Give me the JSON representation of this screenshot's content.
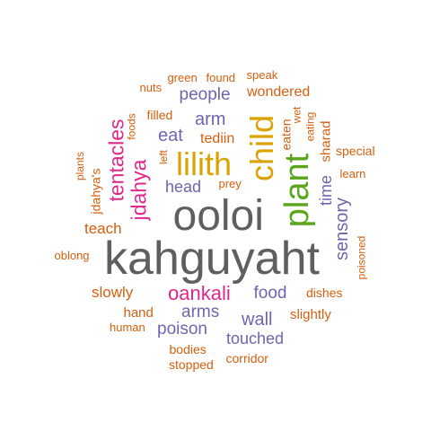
{
  "colors": {
    "gray": "#5f5f5f",
    "gold": "#d9a400",
    "green": "#5aa51c",
    "purple": "#7064b0",
    "pink": "#e0278a",
    "orange": "#d65f0e"
  },
  "words": [
    {
      "text": "kahguyaht",
      "color": "gray"
    },
    {
      "text": "ooloi",
      "color": "gray"
    },
    {
      "text": "plant",
      "color": "green"
    },
    {
      "text": "child",
      "color": "gold"
    },
    {
      "text": "lilith",
      "color": "gold"
    },
    {
      "text": "oankali",
      "color": "pink"
    },
    {
      "text": "tentacles",
      "color": "pink"
    },
    {
      "text": "jdahya",
      "color": "pink"
    },
    {
      "text": "sensory",
      "color": "purple"
    },
    {
      "text": "time",
      "color": "purple"
    },
    {
      "text": "food",
      "color": "purple"
    },
    {
      "text": "wall",
      "color": "purple"
    },
    {
      "text": "arms",
      "color": "purple"
    },
    {
      "text": "touched",
      "color": "purple"
    },
    {
      "text": "poison",
      "color": "purple"
    },
    {
      "text": "people",
      "color": "purple"
    },
    {
      "text": "arm",
      "color": "purple"
    },
    {
      "text": "eat",
      "color": "purple"
    },
    {
      "text": "head",
      "color": "purple"
    },
    {
      "text": "sharad",
      "color": "orange"
    },
    {
      "text": "slowly",
      "color": "orange"
    },
    {
      "text": "teach",
      "color": "orange"
    },
    {
      "text": "wondered",
      "color": "orange"
    },
    {
      "text": "tediin",
      "color": "orange"
    },
    {
      "text": "prey",
      "color": "orange"
    },
    {
      "text": "jdahya's",
      "color": "orange"
    },
    {
      "text": "filled",
      "color": "orange"
    },
    {
      "text": "eaten",
      "color": "orange"
    },
    {
      "text": "wet",
      "color": "orange"
    },
    {
      "text": "eating",
      "color": "orange"
    },
    {
      "text": "special",
      "color": "orange"
    },
    {
      "text": "learn",
      "color": "orange"
    },
    {
      "text": "poisoned",
      "color": "orange"
    },
    {
      "text": "dishes",
      "color": "orange"
    },
    {
      "text": "slightly",
      "color": "orange"
    },
    {
      "text": "hand",
      "color": "orange"
    },
    {
      "text": "human",
      "color": "orange"
    },
    {
      "text": "bodies",
      "color": "orange"
    },
    {
      "text": "stopped",
      "color": "orange"
    },
    {
      "text": "corridor",
      "color": "orange"
    },
    {
      "text": "green",
      "color": "orange"
    },
    {
      "text": "found",
      "color": "orange"
    },
    {
      "text": "speak",
      "color": "orange"
    },
    {
      "text": "nuts",
      "color": "orange"
    },
    {
      "text": "foods",
      "color": "orange"
    },
    {
      "text": "left",
      "color": "orange"
    },
    {
      "text": "plants",
      "color": "orange"
    },
    {
      "text": "oblong",
      "color": "orange"
    }
  ]
}
